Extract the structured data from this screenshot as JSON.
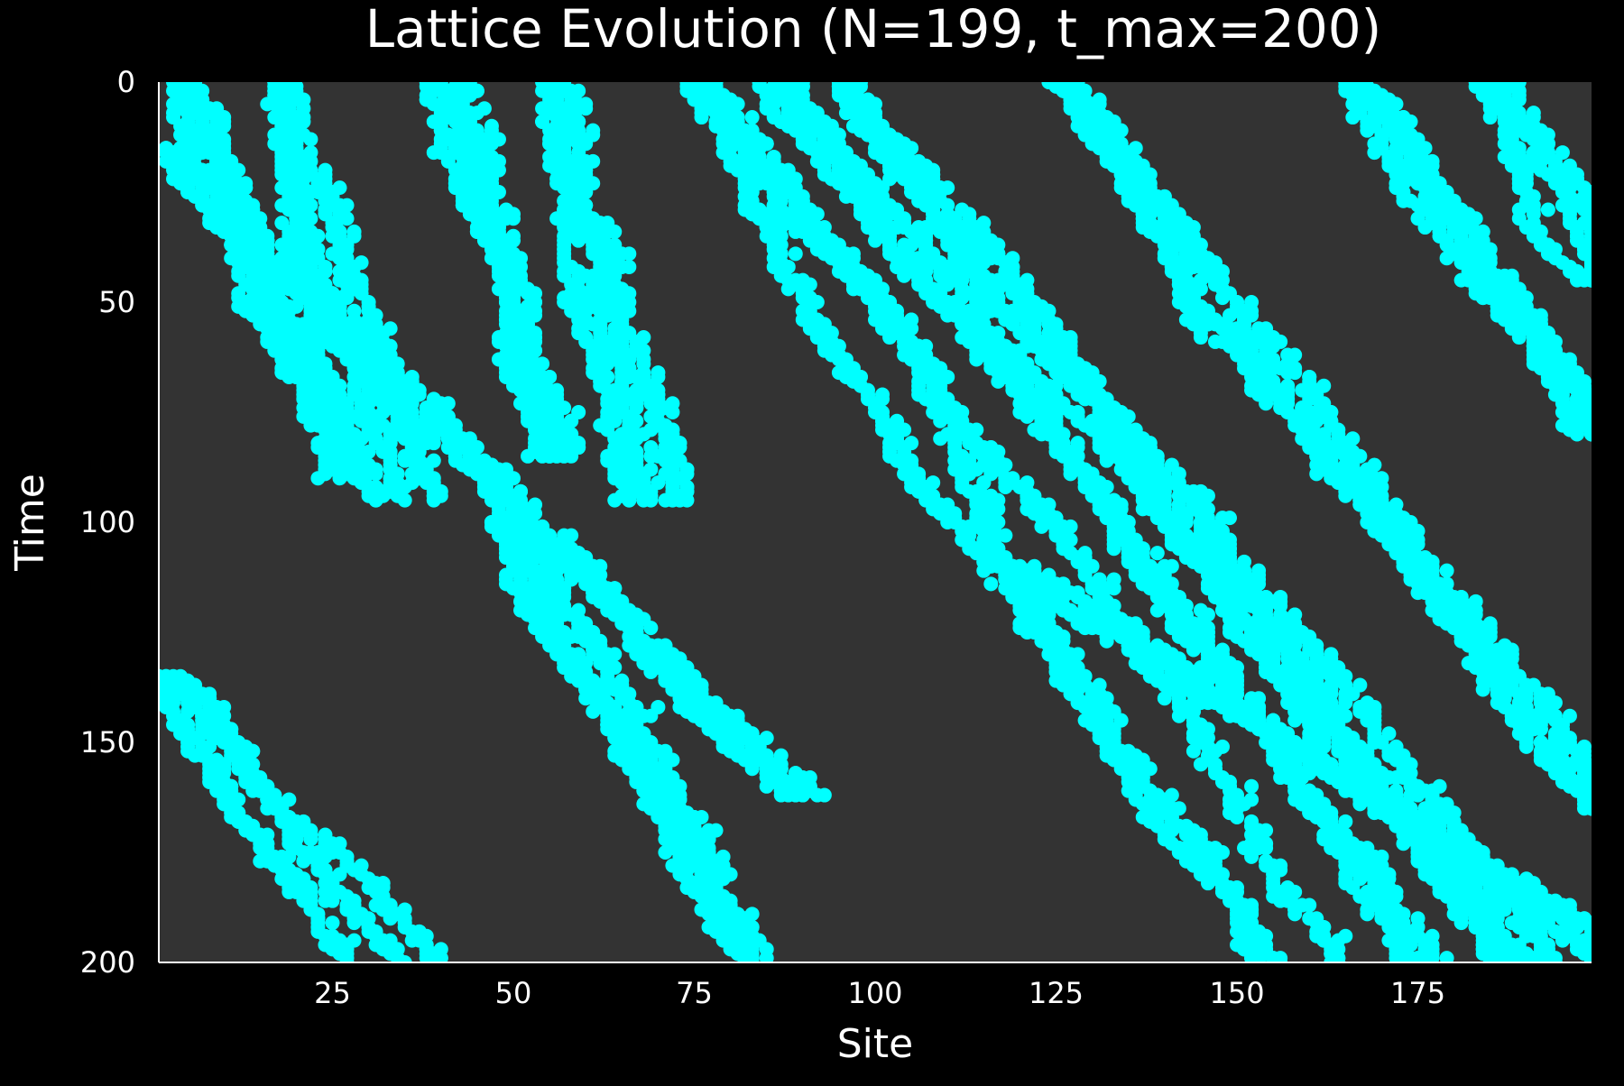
{
  "colors": {
    "background": "#000000",
    "plot_area": "#333333",
    "marker": "#00FFFF",
    "text": "#FFFFFF"
  },
  "chart_data": {
    "type": "scatter",
    "title": "Lattice Evolution (N=199, t_max=200)",
    "xlabel": "Site",
    "ylabel": "Time",
    "xlim": [
      1,
      199
    ],
    "ylim": [
      0,
      200
    ],
    "y_inverted": true,
    "x_ticks": [
      25,
      50,
      75,
      100,
      125,
      150,
      175
    ],
    "y_ticks": [
      0,
      50,
      100,
      150,
      200
    ],
    "grid": false,
    "legend": "none",
    "marker_shape": "circle",
    "description_of_values": "occupied lattice sites (x = site, y = time step); dense diagonal bands drifting right as time increases",
    "bands": [
      {
        "name": "band-a",
        "t_start": 0,
        "t_end": 90,
        "site_start": 3,
        "site_end": 26
      },
      {
        "name": "band-b",
        "t_start": 0,
        "t_end": 95,
        "site_start": 17,
        "site_end": 35
      },
      {
        "name": "band-c",
        "t_start": 0,
        "t_end": 85,
        "site_start": 40,
        "site_end": 52
      },
      {
        "name": "band-d",
        "t_start": 0,
        "t_end": 95,
        "site_start": 55,
        "site_end": 69
      },
      {
        "name": "band-e",
        "t_start": 15,
        "t_end": 162,
        "site_start": 1,
        "site_end": 87
      },
      {
        "name": "band-f",
        "t_start": 0,
        "t_end": 200,
        "site_start": 76,
        "site_end": 160
      },
      {
        "name": "band-g",
        "t_start": 0,
        "t_end": 200,
        "site_start": 85,
        "site_end": 175
      },
      {
        "name": "band-h",
        "t_start": 0,
        "t_end": 200,
        "site_start": 95,
        "site_end": 190
      },
      {
        "name": "band-i",
        "t_start": 0,
        "t_end": 165,
        "site_start": 125,
        "site_end": 199
      },
      {
        "name": "band-j",
        "t_start": 0,
        "t_end": 80,
        "site_start": 166,
        "site_end": 199
      },
      {
        "name": "band-k",
        "t_start": 0,
        "t_end": 45,
        "site_start": 185,
        "site_end": 199
      },
      {
        "name": "band-l",
        "t_start": 135,
        "t_end": 200,
        "site_start": 1,
        "site_end": 37
      },
      {
        "name": "band-m",
        "t_start": 100,
        "t_end": 200,
        "site_start": 48,
        "site_end": 80
      },
      {
        "name": "band-n",
        "t_start": 110,
        "t_end": 200,
        "site_start": 118,
        "site_end": 199
      }
    ]
  }
}
